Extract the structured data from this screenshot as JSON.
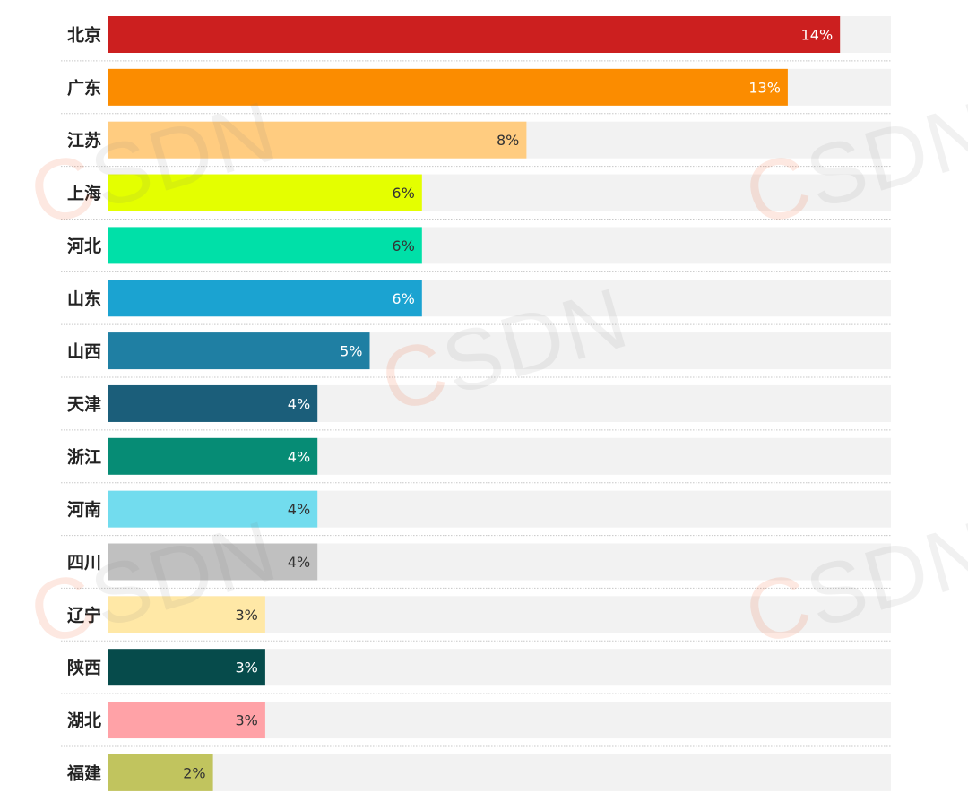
{
  "chart_data": {
    "type": "bar",
    "orientation": "horizontal",
    "categories": [
      "北京",
      "广东",
      "江苏",
      "上海",
      "河北",
      "山东",
      "山西",
      "天津",
      "浙江",
      "河南",
      "四川",
      "辽宁",
      "陕西",
      "湖北",
      "福建"
    ],
    "values": [
      14,
      13,
      8,
      6,
      6,
      6,
      5,
      4,
      4,
      4,
      4,
      3,
      3,
      3,
      2
    ],
    "value_labels": [
      "14%",
      "13%",
      "8%",
      "6%",
      "6%",
      "6%",
      "5%",
      "4%",
      "4%",
      "4%",
      "4%",
      "3%",
      "3%",
      "3%",
      "2%"
    ],
    "bar_colors": [
      "#cc1f1f",
      "#fb8c00",
      "#ffcc80",
      "#e4ff00",
      "#00e0a8",
      "#1ba3d1",
      "#1f7fa3",
      "#1b5e7a",
      "#068c75",
      "#72dcee",
      "#c0c0c0",
      "#ffe8a6",
      "#064b4b",
      "#ffa2a7",
      "#c1c45e"
    ],
    "label_colors": [
      "#ffffff",
      "#ffffff",
      "#333333",
      "#333333",
      "#333333",
      "#ffffff",
      "#ffffff",
      "#ffffff",
      "#ffffff",
      "#333333",
      "#333333",
      "#333333",
      "#ffffff",
      "#333333",
      "#333333"
    ],
    "track_color": "#f2f2f2",
    "xlim": [
      0,
      15
    ],
    "title": "",
    "xlabel": "",
    "ylabel": "",
    "grid": false,
    "legend": "none"
  },
  "watermark": {
    "text_c": "C",
    "text_sdn": "SDN"
  }
}
